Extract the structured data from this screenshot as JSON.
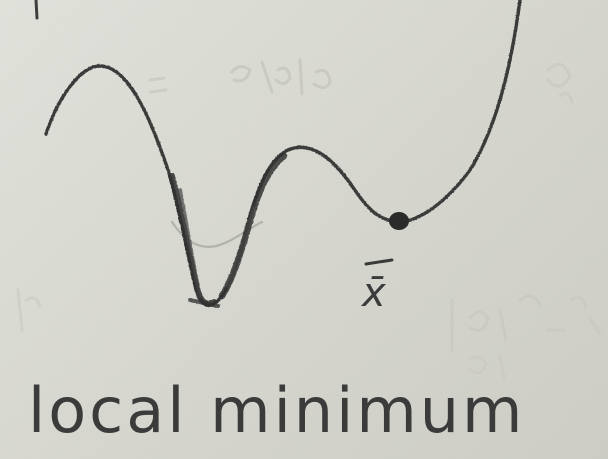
{
  "diagram": {
    "point_label": "x̄",
    "caption": "local minimum",
    "colors": {
      "paper": "#dcdcd6",
      "pencil": "#3b3b3b",
      "faint_pencil": "#b9b9b2"
    }
  }
}
